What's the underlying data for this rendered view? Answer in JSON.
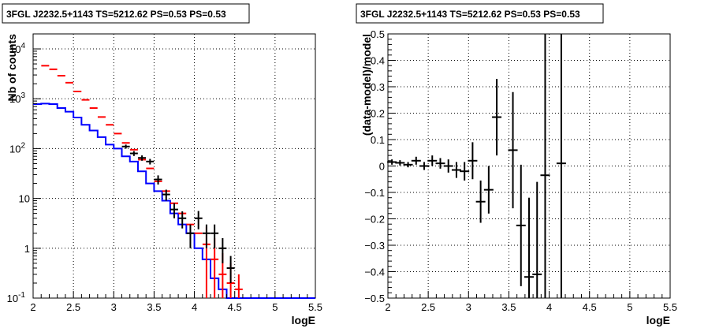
{
  "chart_data": [
    {
      "type": "line",
      "title": "3FGL J2232.5+1143 TS=5212.62 PS=0.53 PS=0.53",
      "xlabel": "logE",
      "ylabel": "Nb of counts",
      "xlim": [
        2,
        5.5
      ],
      "ylim": [
        0.1,
        20000
      ],
      "yscale": "log",
      "grid": true,
      "x_ticks": [
        "2",
        "2.5",
        "3",
        "3.5",
        "4",
        "4.5",
        "5",
        "5.5"
      ],
      "y_ticks": [
        "10^{-1}",
        "1",
        "10",
        "10^{2}",
        "10^{3}",
        "10^{4}"
      ],
      "series": [
        {
          "color": "#0000ff",
          "style": "step",
          "bin_edges": [
            2.0,
            2.1,
            2.2,
            2.3,
            2.4,
            2.5,
            2.6,
            2.7,
            2.8,
            2.9,
            3.0,
            3.1,
            3.2,
            3.3,
            3.4,
            3.5,
            3.6,
            3.7,
            3.8,
            3.9,
            4.0,
            4.1,
            4.2,
            4.3,
            4.4,
            4.5,
            4.6,
            4.7,
            4.8,
            4.9,
            5.0,
            5.1,
            5.2,
            5.3,
            5.4,
            5.5
          ],
          "values": [
            780,
            800,
            780,
            650,
            550,
            420,
            300,
            230,
            170,
            120,
            100,
            70,
            55,
            35,
            20,
            14,
            9,
            5,
            3,
            2,
            1,
            0.6,
            0.25,
            0.15,
            0.1,
            0.1,
            0.1,
            0.1,
            0.1,
            0.1,
            0.1,
            0.1,
            0.1,
            0.1,
            0.1
          ]
        },
        {
          "color": "#ff0000",
          "style": "points",
          "x": [
            2.15,
            2.25,
            2.35,
            2.45,
            2.55,
            2.65,
            2.75,
            2.85,
            2.95,
            3.05,
            3.15,
            3.25,
            3.35,
            3.45,
            3.55,
            3.65,
            3.75,
            3.85,
            3.95,
            4.05,
            4.15,
            4.25,
            4.35,
            4.45,
            4.55
          ],
          "y": [
            4600,
            3900,
            2900,
            2100,
            1400,
            950,
            650,
            430,
            300,
            200,
            130,
            95,
            60,
            40,
            22,
            14,
            8,
            5,
            3,
            2,
            1.2,
            0.6,
            0.3,
            0.2,
            0.15
          ],
          "err_low": [
            0,
            0,
            0,
            0,
            0,
            0,
            0,
            0,
            0,
            0,
            0,
            0,
            0,
            0,
            0,
            0,
            0,
            0,
            0,
            0,
            1.1,
            0.5,
            0.2,
            0.1,
            0.05
          ],
          "err_high": [
            0,
            0,
            0,
            0,
            0,
            0,
            0,
            0,
            0,
            0,
            0,
            0,
            0,
            0,
            0,
            0,
            0,
            0,
            0,
            0,
            1.5,
            1,
            0.5,
            0.3,
            0.15
          ]
        },
        {
          "color": "#000000",
          "style": "points",
          "x": [
            3.15,
            3.25,
            3.35,
            3.45,
            3.55,
            3.65,
            3.75,
            3.85,
            3.95,
            4.05,
            4.15,
            4.25,
            4.35,
            4.45
          ],
          "y": [
            110,
            80,
            65,
            55,
            24,
            12,
            6,
            4,
            2,
            4,
            2,
            2,
            1,
            0.4
          ],
          "err_low": [
            10,
            9,
            8,
            7,
            5,
            3,
            2,
            1.5,
            1,
            1.6,
            1,
            1,
            0.5,
            0.2
          ],
          "err_high": [
            10,
            9,
            8,
            7,
            5,
            3,
            2,
            1.5,
            1,
            1.6,
            1,
            1,
            0.6,
            0.3
          ]
        }
      ]
    },
    {
      "type": "scatter",
      "title": "3FGL J2232.5+1143 TS=5212.62 PS=0.53 PS=0.53",
      "xlabel": "logE",
      "ylabel": "(data-model)/model",
      "xlim": [
        2,
        5.5
      ],
      "ylim": [
        -0.5,
        0.5
      ],
      "grid": true,
      "x_ticks": [
        "2",
        "2.5",
        "3",
        "3.5",
        "4",
        "4.5",
        "5",
        "5.5"
      ],
      "y_ticks": [
        "−0.5",
        "−0.4",
        "−0.3",
        "−0.2",
        "−0.1",
        "0",
        "0.1",
        "0.2",
        "0.3",
        "0.4",
        "0.5"
      ],
      "series": [
        {
          "color": "#000000",
          "x": [
            2.05,
            2.15,
            2.25,
            2.35,
            2.45,
            2.55,
            2.65,
            2.75,
            2.85,
            2.95,
            3.05,
            3.15,
            3.25,
            3.35,
            3.55,
            3.65,
            3.75,
            3.85,
            3.95,
            4.15
          ],
          "y": [
            0.015,
            0.012,
            0.005,
            0.02,
            0.0,
            0.02,
            0.01,
            0.0,
            -0.015,
            -0.02,
            0.02,
            -0.135,
            -0.09,
            0.185,
            0.06,
            -0.225,
            -0.42,
            -0.41,
            -0.035,
            0.01
          ],
          "err": [
            0.01,
            0.01,
            0.01,
            0.015,
            0.015,
            0.02,
            0.02,
            0.025,
            0.03,
            0.035,
            0.07,
            0.08,
            0.09,
            0.145,
            0.22,
            0.23,
            0.3,
            0.35,
            0.55,
            0.6
          ]
        }
      ]
    }
  ]
}
